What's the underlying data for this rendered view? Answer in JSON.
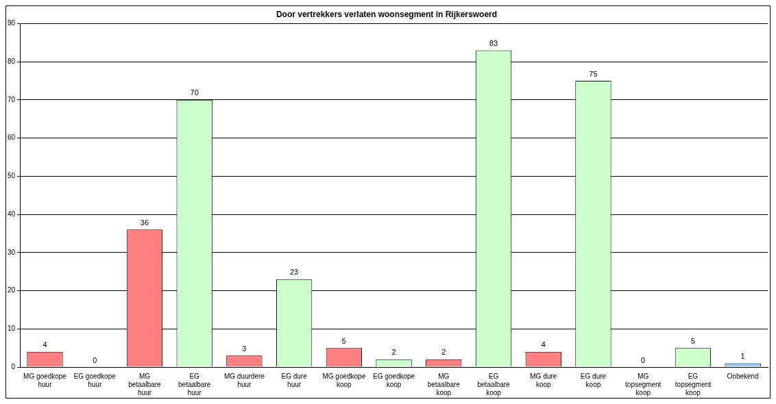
{
  "chart_data": {
    "type": "bar",
    "title": "Door vertrekkers verlaten woonsegment in Rijkerswoerd",
    "categories": [
      "MG goedkope huur",
      "EG goedkope huur",
      "MG betaalbare huur",
      "EG betaalbare huur",
      "MG duurdere huur",
      "EG dure huur",
      "MG goedkope koop",
      "EG goedkope koop",
      "MG betaalbare koop",
      "EG betaalbare koop",
      "MG dure koop",
      "EG dure koop",
      "MG topsegment koop",
      "EG topsegment koop",
      "Onbekend"
    ],
    "values": [
      4,
      0,
      36,
      70,
      3,
      23,
      5,
      2,
      2,
      83,
      4,
      75,
      0,
      5,
      1
    ],
    "colors": [
      "#ff8080",
      "#ccffcc",
      "#ff8080",
      "#ccffcc",
      "#ff8080",
      "#ccffcc",
      "#ff8080",
      "#ccffcc",
      "#ff8080",
      "#ccffcc",
      "#ff8080",
      "#ccffcc",
      "#ff8080",
      "#ccffcc",
      "#99ccff"
    ],
    "ylim": [
      0,
      90
    ],
    "yticks": [
      0,
      10,
      20,
      30,
      40,
      50,
      60,
      70,
      80,
      90
    ],
    "grid": "y",
    "data_labels": true,
    "legend": false
  }
}
